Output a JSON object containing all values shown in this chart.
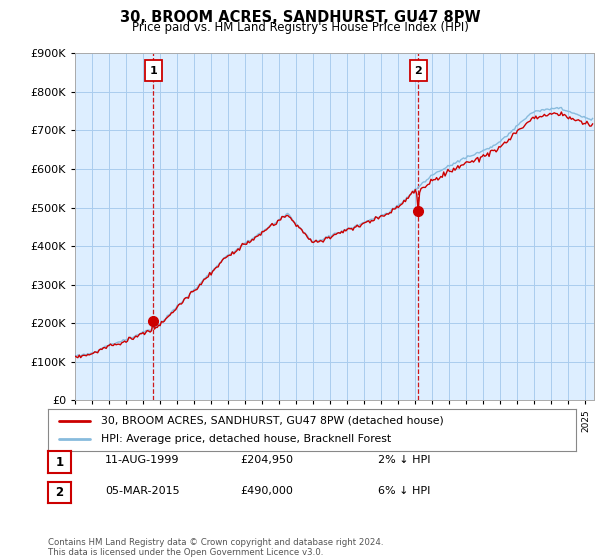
{
  "title": "30, BROOM ACRES, SANDHURST, GU47 8PW",
  "subtitle": "Price paid vs. HM Land Registry's House Price Index (HPI)",
  "ylabel_ticks": [
    "£0",
    "£100K",
    "£200K",
    "£300K",
    "£400K",
    "£500K",
    "£600K",
    "£700K",
    "£800K",
    "£900K"
  ],
  "ytick_values": [
    0,
    100000,
    200000,
    300000,
    400000,
    500000,
    600000,
    700000,
    800000,
    900000
  ],
  "ylim": [
    0,
    900000
  ],
  "xlim_start": 1995.0,
  "xlim_end": 2025.5,
  "sale1_date": 1999.61,
  "sale1_price": 204950,
  "sale1_label": "1",
  "sale2_date": 2015.17,
  "sale2_price": 490000,
  "sale2_label": "2",
  "line_color_red": "#cc0000",
  "line_color_blue": "#88bbdd",
  "dashed_color": "#cc0000",
  "background_color": "#ffffff",
  "chart_bg_color": "#ddeeff",
  "grid_color": "#aaccee",
  "legend_line1": "30, BROOM ACRES, SANDHURST, GU47 8PW (detached house)",
  "legend_line2": "HPI: Average price, detached house, Bracknell Forest",
  "footnote": "Contains HM Land Registry data © Crown copyright and database right 2024.\nThis data is licensed under the Open Government Licence v3.0.",
  "marker_box_color": "#cc0000",
  "sale1_date_str": "11-AUG-1999",
  "sale1_price_str": "£204,950",
  "sale1_info_str": "2% ↓ HPI",
  "sale2_date_str": "05-MAR-2015",
  "sale2_price_str": "£490,000",
  "sale2_info_str": "6% ↓ HPI"
}
